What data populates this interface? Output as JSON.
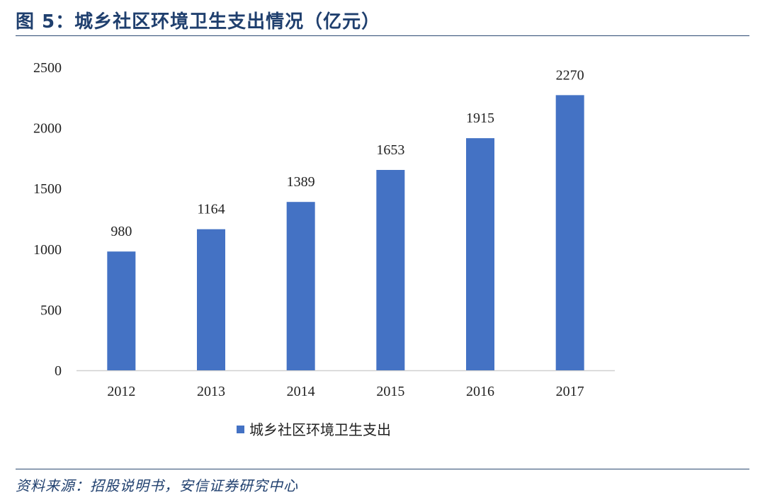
{
  "figure": {
    "title": "图 5：城乡社区环境卫生支出情况（亿元）",
    "source": "资料来源：招股说明书，安信证券研究中心"
  },
  "chart_data": {
    "type": "bar",
    "title": "",
    "categories": [
      "2012",
      "2013",
      "2014",
      "2015",
      "2016",
      "2017"
    ],
    "series": [
      {
        "name": "城乡社区环境卫生支出",
        "values": [
          980,
          1164,
          1389,
          1653,
          1915,
          2270
        ],
        "color": "#4472c4"
      }
    ],
    "ylim": [
      0,
      2500
    ],
    "yticks": [
      0,
      500,
      1000,
      1500,
      2000,
      2500
    ],
    "grid": false,
    "legend": "bottom",
    "xlabel": "",
    "ylabel": ""
  }
}
